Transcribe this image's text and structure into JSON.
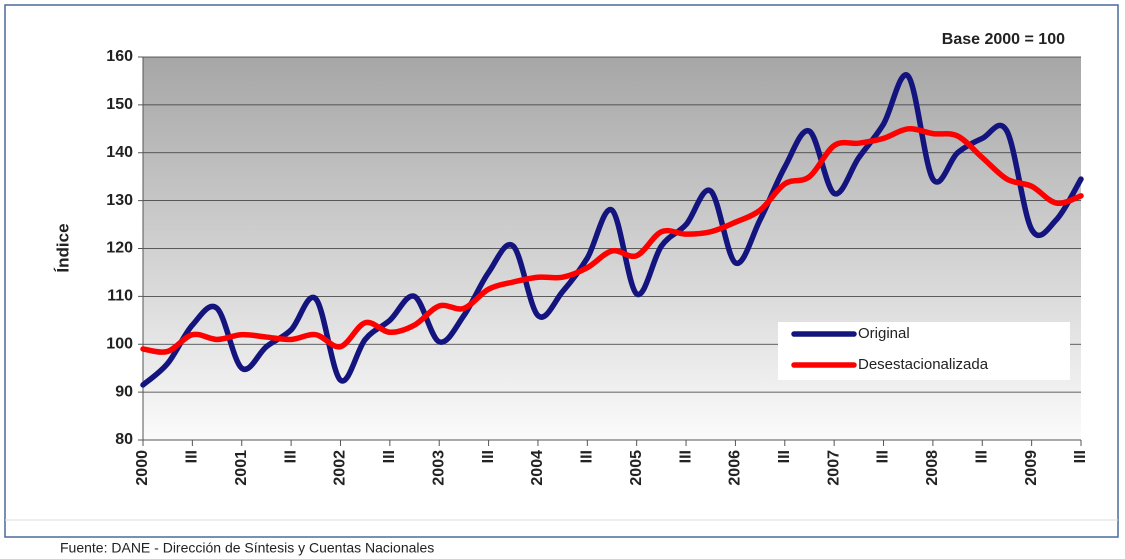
{
  "chart_data": {
    "type": "line",
    "title": "Base 2000 = 100",
    "y_label": "Índice",
    "source": "Fuente: DANE - Dirección de Síntesis y Cuentas Nacionales",
    "categories": [
      "2000",
      null,
      "III",
      null,
      "2001",
      null,
      "III",
      null,
      "2002",
      null,
      "III",
      null,
      "2003",
      null,
      "III",
      null,
      "2004",
      null,
      "III",
      null,
      "2005",
      null,
      "III",
      null,
      "2006",
      null,
      "III",
      null,
      "2007",
      null,
      "III",
      null,
      "2008",
      null,
      "III",
      null,
      "2009",
      null,
      "III"
    ],
    "series": [
      {
        "name": "Original",
        "color": "#14147f",
        "values": [
          91.5,
          96,
          104,
          107.5,
          95,
          99.5,
          103,
          109.5,
          92.5,
          101,
          105,
          110,
          100.5,
          106,
          115,
          120.5,
          106,
          111,
          118,
          128,
          110.5,
          120.5,
          125,
          132,
          117,
          126,
          137,
          144.5,
          131.5,
          139,
          146,
          156,
          134.5,
          140,
          143,
          144.5,
          124,
          126,
          134.5
        ]
      },
      {
        "name": "Desestacionalizada",
        "color": "#ff0000",
        "values": [
          99,
          98.5,
          102,
          101,
          102,
          101.5,
          101,
          102,
          99.5,
          104.5,
          102.5,
          104,
          108,
          107.5,
          111.5,
          113,
          114,
          114,
          116,
          119.5,
          118.5,
          123.5,
          123,
          123.5,
          125.5,
          128,
          133.5,
          135,
          141.5,
          142,
          143,
          145,
          144,
          143.5,
          139,
          134.5,
          133,
          129.5,
          131
        ]
      }
    ],
    "ylim": [
      80,
      160
    ],
    "yticks": [
      80,
      90,
      100,
      110,
      120,
      130,
      140,
      150,
      160
    ],
    "grid": true,
    "legend": "right"
  }
}
